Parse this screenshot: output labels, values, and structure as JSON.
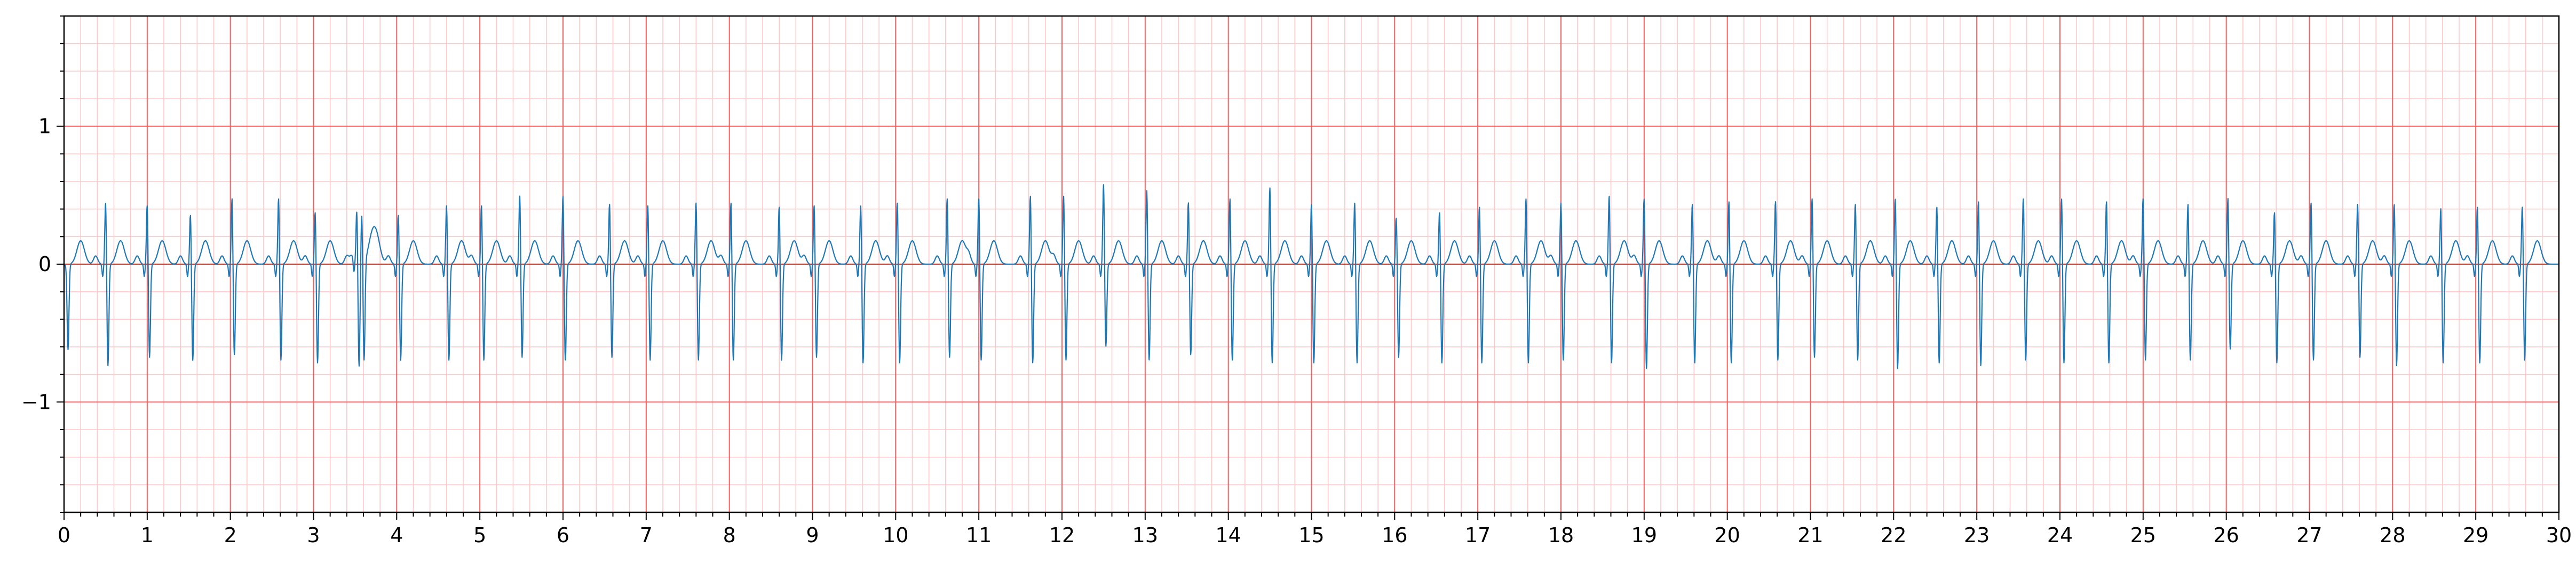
{
  "chart_data": {
    "type": "line",
    "title": "",
    "xlabel": "",
    "ylabel": "",
    "xlim": [
      0,
      30
    ],
    "ylim": [
      -1.8,
      1.8
    ],
    "x_major_ticks": [
      "0",
      "1",
      "2",
      "3",
      "4",
      "5",
      "6",
      "7",
      "8",
      "9",
      "10",
      "11",
      "12",
      "13",
      "14",
      "15",
      "16",
      "17",
      "18",
      "19",
      "20",
      "21",
      "22",
      "23",
      "24",
      "25",
      "26",
      "27",
      "28",
      "29",
      "30"
    ],
    "y_major_ticks": [
      "−1",
      "0",
      "1"
    ],
    "y_major_tick_values": [
      -1,
      0,
      1
    ],
    "grid": true,
    "grid_major_x": 1,
    "grid_minor_x": 0.2,
    "grid_major_y": 1,
    "grid_minor_y": 0.2,
    "colors": {
      "signal": "#1f77b4",
      "grid_major": "#f06060",
      "grid_minor": "#ffc8c8",
      "zero_line": "#c0392b"
    },
    "series": [
      {
        "beat_times": [
          0.02,
          0.5,
          1.0,
          1.52,
          2.02,
          2.58,
          3.02,
          3.52,
          3.58,
          4.02,
          4.6,
          5.02,
          5.48,
          6.0,
          6.56,
          7.02,
          7.6,
          8.02,
          8.6,
          9.02,
          9.58,
          10.02,
          10.62,
          11.0,
          11.62,
          12.02,
          12.5,
          13.02,
          13.52,
          14.02,
          14.5,
          15.0,
          15.52,
          16.02,
          16.54,
          17.02,
          17.58,
          18.0,
          18.58,
          19.0,
          19.58,
          20.02,
          20.58,
          21.02,
          21.54,
          22.02,
          22.52,
          23.02,
          23.56,
          24.02,
          24.56,
          25.0,
          25.54,
          26.02,
          26.58,
          27.02,
          27.58,
          28.02,
          28.58,
          29.02,
          29.56
        ],
        "r_peaks": [
          0.0,
          0.47,
          0.45,
          0.38,
          0.5,
          0.5,
          0.4,
          0.4,
          0.38,
          0.38,
          0.45,
          0.45,
          0.52,
          0.52,
          0.46,
          0.45,
          0.47,
          0.47,
          0.44,
          0.45,
          0.45,
          0.47,
          0.5,
          0.5,
          0.52,
          0.52,
          0.6,
          0.56,
          0.47,
          0.5,
          0.58,
          0.46,
          0.47,
          0.36,
          0.4,
          0.44,
          0.5,
          0.47,
          0.52,
          0.5,
          0.46,
          0.48,
          0.48,
          0.5,
          0.46,
          0.5,
          0.44,
          0.48,
          0.5,
          0.5,
          0.48,
          0.5,
          0.46,
          0.5,
          0.4,
          0.47,
          0.46,
          0.46,
          0.43,
          0.44,
          0.44
        ],
        "s_troughs": [
          -0.62,
          -0.74,
          -0.68,
          -0.7,
          -0.66,
          -0.7,
          -0.72,
          -0.66,
          -0.72,
          -0.7,
          -0.7,
          -0.7,
          -0.68,
          -0.7,
          -0.68,
          -0.7,
          -0.7,
          -0.7,
          -0.7,
          -0.68,
          -0.72,
          -0.72,
          -0.68,
          -0.7,
          -0.72,
          -0.7,
          -0.6,
          -0.7,
          -0.66,
          -0.7,
          -0.72,
          -0.72,
          -0.72,
          -0.68,
          -0.72,
          -0.72,
          -0.72,
          -0.7,
          -0.72,
          -0.76,
          -0.72,
          -0.72,
          -0.7,
          -0.68,
          -0.7,
          -0.76,
          -0.72,
          -0.74,
          -0.7,
          -0.72,
          -0.72,
          -0.7,
          -0.7,
          -0.62,
          -0.72,
          -0.7,
          -0.68,
          -0.74,
          -0.72,
          -0.72,
          -0.7
        ],
        "t_wave_peak": 0.17
      }
    ]
  }
}
